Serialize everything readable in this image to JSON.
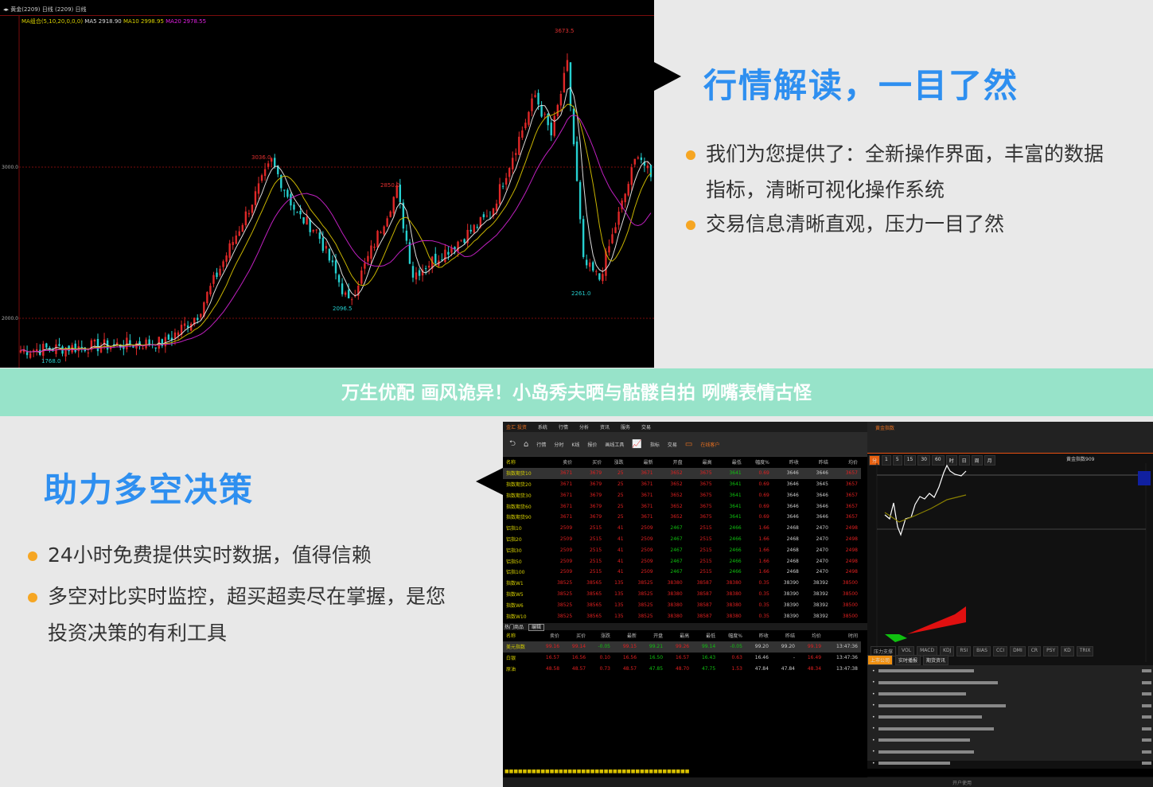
{
  "kline": {
    "header": "◂▸ 黄金(2209) 日线 (2209) 日线",
    "ma_legend": [
      {
        "text": "MA组合(5,10,20,0,0,0)",
        "color": "#d8d000"
      },
      {
        "text": "MA5 2918.90",
        "color": "#dddddd"
      },
      {
        "text": "MA10 2998.95",
        "color": "#d8d000"
      },
      {
        "text": "MA20 2978.55",
        "color": "#e020e0"
      }
    ],
    "grid_labels": [
      "3000.0",
      "2000.0"
    ],
    "annotations": [
      "3673.5",
      "3036.0",
      "2850.0",
      "2096.5",
      "2261.0",
      "1768.0"
    ],
    "colors": {
      "up": "#e02828",
      "down": "#26d0d0",
      "ma5": "#dddddd",
      "ma10": "#c8b400",
      "ma20": "#c020c0"
    }
  },
  "chart_data": {
    "type": "candlestick",
    "title": "",
    "ylabel": "",
    "yticks": [
      2000,
      3000
    ],
    "grid": true,
    "trend_points": [
      [
        0,
        1789
      ],
      [
        45,
        1842
      ],
      [
        55,
        2026
      ],
      [
        78,
        3036
      ],
      [
        86,
        2684
      ],
      [
        92,
        2579
      ],
      [
        102,
        2096.5
      ],
      [
        117,
        2850
      ],
      [
        122,
        2289
      ],
      [
        134,
        2474
      ],
      [
        146,
        2684
      ],
      [
        160,
        3474
      ],
      [
        165,
        3210
      ],
      [
        170,
        3673.5
      ],
      [
        175,
        2368
      ],
      [
        180,
        2261
      ],
      [
        192,
        3105
      ],
      [
        196,
        2920
      ]
    ]
  },
  "top_panel": {
    "title": "行情解读，一目了然",
    "bullets": [
      "我们为您提供了：全新操作界面，丰富的数据",
      "指标，清晰可视化操作系统",
      "交易信息清晰直观，压力一目了然"
    ]
  },
  "banner": "万生优配 画风诡异！小岛秀夫晒与骷髅自拍 咧嘴表情古怪",
  "bottom_panel": {
    "title": "助力多空决策",
    "bullets": [
      "24小时免费提供实时数据，值得信赖",
      "多空对比实时监控，超买超卖尽在掌握，是您",
      "投资决策的有利工具"
    ]
  },
  "app": {
    "logo": "金汇 投资",
    "menu": [
      "系统",
      "行情",
      "分析",
      "资讯",
      "服务",
      "交易"
    ],
    "toolbar": [
      "返回",
      "首页",
      "行情",
      "分时",
      "K线",
      "报价",
      "画线工具",
      "指标",
      "交易",
      "在线客户"
    ],
    "columns": [
      "名称",
      "卖价",
      "买价",
      "涨跌",
      "最新",
      "开盘",
      "最高",
      "最低",
      "幅度%",
      "昨收",
      "昨结",
      "均价"
    ],
    "rows": [
      [
        "指数期货10",
        "3671",
        "3679",
        "25",
        "3671",
        "3652",
        "3675",
        "3641",
        "0.69",
        "3646",
        "3646",
        "3657"
      ],
      [
        "指数期货20",
        "3671",
        "3679",
        "25",
        "3671",
        "3652",
        "3675",
        "3641",
        "0.69",
        "3646",
        "3645",
        "3657"
      ],
      [
        "指数期货30",
        "3671",
        "3679",
        "25",
        "3671",
        "3652",
        "3675",
        "3641",
        "0.69",
        "3646",
        "3646",
        "3657"
      ],
      [
        "指数期货60",
        "3671",
        "3679",
        "25",
        "3671",
        "3652",
        "3675",
        "3641",
        "0.69",
        "3646",
        "3646",
        "3657"
      ],
      [
        "指数期货90",
        "3671",
        "3679",
        "25",
        "3671",
        "3652",
        "3675",
        "3641",
        "0.69",
        "3646",
        "3646",
        "3657"
      ],
      [
        "铝指10",
        "2509",
        "2515",
        "41",
        "2509",
        "2467",
        "2515",
        "2466",
        "1.66",
        "2468",
        "2470",
        "2498"
      ],
      [
        "铝指20",
        "2509",
        "2515",
        "41",
        "2509",
        "2467",
        "2515",
        "2466",
        "1.66",
        "2468",
        "2470",
        "2498"
      ],
      [
        "铝指30",
        "2509",
        "2515",
        "41",
        "2509",
        "2467",
        "2515",
        "2466",
        "1.66",
        "2468",
        "2470",
        "2498"
      ],
      [
        "铝指50",
        "2509",
        "2515",
        "41",
        "2509",
        "2467",
        "2515",
        "2466",
        "1.66",
        "2468",
        "2470",
        "2498"
      ],
      [
        "铝指100",
        "2509",
        "2515",
        "41",
        "2509",
        "2467",
        "2515",
        "2466",
        "1.66",
        "2468",
        "2470",
        "2498"
      ],
      [
        "指数W1",
        "38525",
        "38565",
        "135",
        "38525",
        "38380",
        "38587",
        "38380",
        "0.35",
        "38390",
        "38392",
        "38500"
      ],
      [
        "指数W5",
        "38525",
        "38565",
        "135",
        "38525",
        "38380",
        "38587",
        "38380",
        "0.35",
        "38390",
        "38392",
        "38500"
      ],
      [
        "指数W6",
        "38525",
        "38565",
        "135",
        "38525",
        "38380",
        "38587",
        "38380",
        "0.35",
        "38390",
        "38392",
        "38500"
      ],
      [
        "指数W10",
        "38525",
        "38565",
        "135",
        "38525",
        "38380",
        "38587",
        "38380",
        "0.35",
        "38390",
        "38392",
        "38500"
      ]
    ],
    "hot_label": "热门商品",
    "hot_button": "编辑",
    "hot_columns": [
      "名称",
      "卖价",
      "买价",
      "涨跌",
      "最新",
      "开盘",
      "最高",
      "最低",
      "幅度%",
      "昨收",
      "昨结",
      "均价",
      "时间"
    ],
    "hot_rows": [
      [
        "美元指数",
        "99.16",
        "99.14",
        "-0.05",
        "99.15",
        "99.21",
        "99.26",
        "99.14",
        "-0.05",
        "99.20",
        "99.20",
        "99.19",
        "13:47:36"
      ],
      [
        "白银",
        "16.57",
        "16.56",
        "0.10",
        "16.56",
        "16.50",
        "16.57",
        "16.43",
        "0.63",
        "16.46",
        "-",
        "16.49",
        "13:47:36"
      ],
      [
        "原油",
        "48.58",
        "48.57",
        "0.73",
        "48.57",
        "47.85",
        "48.70",
        "47.75",
        "1.53",
        "47.84",
        "47.84",
        "48.34",
        "13:47:38"
      ]
    ],
    "right_title": "黄金指数",
    "periods": [
      "分",
      "1",
      "5",
      "15",
      "30",
      "60",
      "时",
      "日",
      "周",
      "月"
    ],
    "contract": "黄金指数909",
    "indicator_tabs": [
      "压力支撑",
      "VOL",
      "MACD",
      "KDJ",
      "RSI",
      "BIAS",
      "CCI",
      "DMI",
      "CR",
      "PSY",
      "KD",
      "TRIX"
    ],
    "news_tabs": [
      "上市公司",
      "实时播报",
      "期货资讯"
    ],
    "status": "开户使用"
  }
}
